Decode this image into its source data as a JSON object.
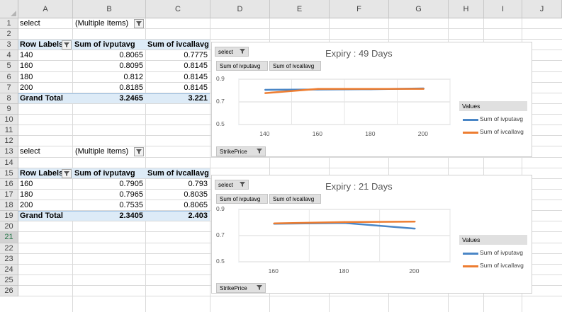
{
  "columns": [
    "A",
    "B",
    "C",
    "D",
    "E",
    "F",
    "G",
    "H",
    "I",
    "J"
  ],
  "rows": [
    "1",
    "2",
    "3",
    "4",
    "5",
    "6",
    "7",
    "8",
    "9",
    "10",
    "11",
    "12",
    "13",
    "14",
    "15",
    "16",
    "17",
    "18",
    "19",
    "20",
    "21",
    "22",
    "23",
    "24",
    "25",
    "26"
  ],
  "pivot1": {
    "filter_label": "select",
    "filter_value": "(Multiple Items)",
    "headers": [
      "Row Labels",
      "Sum of ivputavg",
      "Sum of ivcallavg"
    ],
    "rows": [
      [
        "140",
        "0.8065",
        "0.7775"
      ],
      [
        "160",
        "0.8095",
        "0.8145"
      ],
      [
        "180",
        "0.812",
        "0.8145"
      ],
      [
        "200",
        "0.8185",
        "0.8145"
      ]
    ],
    "total": [
      "Grand Total",
      "3.2465",
      "3.221"
    ]
  },
  "pivot2": {
    "filter_label": "select",
    "filter_value": "(Multiple Items)",
    "headers": [
      "Row Labels",
      "Sum of ivputavg",
      "Sum of ivcallavg"
    ],
    "rows": [
      [
        "160",
        "0.7905",
        "0.793"
      ],
      [
        "180",
        "0.7965",
        "0.8035"
      ],
      [
        "200",
        "0.7535",
        "0.8065"
      ]
    ],
    "total": [
      "Grand Total",
      "2.3405",
      "2.403"
    ]
  },
  "chart1": {
    "filter_button": "select",
    "value_buttons": [
      "Sum of ivputavg",
      "Sum of ivcallavg"
    ],
    "axis_button": "StrikePrice",
    "legend_title": "Values"
  },
  "chart2": {
    "filter_button": "select",
    "value_buttons": [
      "Sum of ivputavg",
      "Sum of ivcallavg"
    ],
    "axis_button": "StrikePrice",
    "legend_title": "Values"
  },
  "chart_data": [
    {
      "type": "line",
      "title": "Expiry : 49 Days",
      "categories": [
        "140",
        "160",
        "180",
        "200"
      ],
      "series": [
        {
          "name": "Sum of ivputavg",
          "color": "#4a86c6",
          "values": [
            0.8065,
            0.8095,
            0.812,
            0.8185
          ]
        },
        {
          "name": "Sum of ivcallavg",
          "color": "#ed7d31",
          "values": [
            0.7775,
            0.8145,
            0.8145,
            0.8145
          ]
        }
      ],
      "ylim": [
        0.5,
        0.9
      ],
      "yticks": [
        "0.5",
        "0.7",
        "0.9"
      ],
      "grid": true,
      "legend": "right"
    },
    {
      "type": "line",
      "title": "Expiry : 21 Days",
      "categories": [
        "160",
        "180",
        "200"
      ],
      "series": [
        {
          "name": "Sum of ivputavg",
          "color": "#4a86c6",
          "values": [
            0.7905,
            0.7965,
            0.7535
          ]
        },
        {
          "name": "Sum of ivcallavg",
          "color": "#ed7d31",
          "values": [
            0.793,
            0.8035,
            0.8065
          ]
        }
      ],
      "ylim": [
        0.5,
        0.9
      ],
      "yticks": [
        "0.5",
        "0.7",
        "0.9"
      ],
      "grid": true,
      "legend": "right"
    }
  ]
}
